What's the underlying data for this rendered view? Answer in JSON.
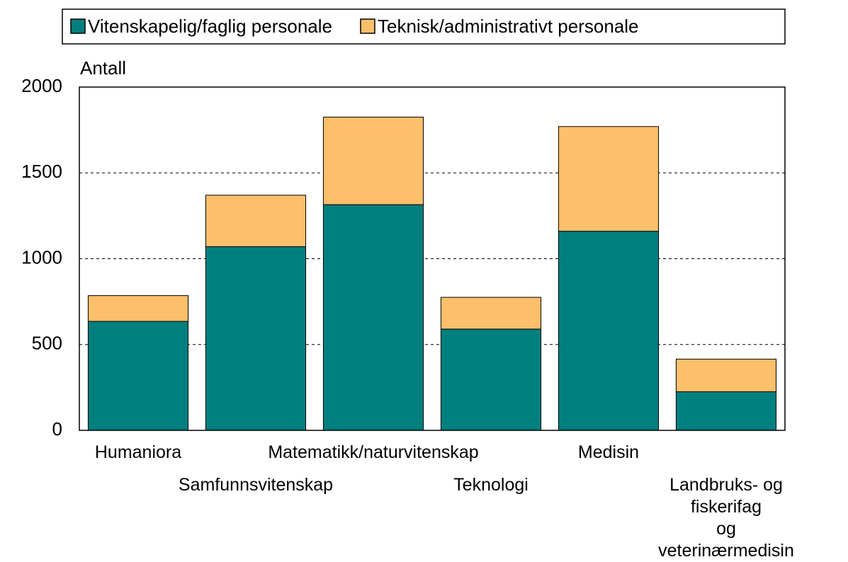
{
  "chart_data": {
    "type": "stacked_bar",
    "y_axis_label": "Antall",
    "categories": [
      "Humaniora",
      "Samfunnsvitenskap",
      "Matematikk/naturvitenskap",
      "Teknologi",
      "Medisin",
      "Landbruks- og fiskerifag\nog veterinærmedisin"
    ],
    "series": [
      {
        "name": "Vitenskapelig/faglig personale",
        "color": "#007f7f",
        "values": [
          635,
          1070,
          1315,
          590,
          1160,
          225
        ]
      },
      {
        "name": "Teknisk/administrativt personale",
        "color": "#fcbf6b",
        "values": [
          150,
          300,
          510,
          185,
          610,
          190
        ]
      }
    ],
    "ylim": [
      0,
      2000
    ],
    "yticks": [
      0,
      500,
      1000,
      1500,
      2000
    ],
    "grid": true,
    "legend": "top"
  }
}
